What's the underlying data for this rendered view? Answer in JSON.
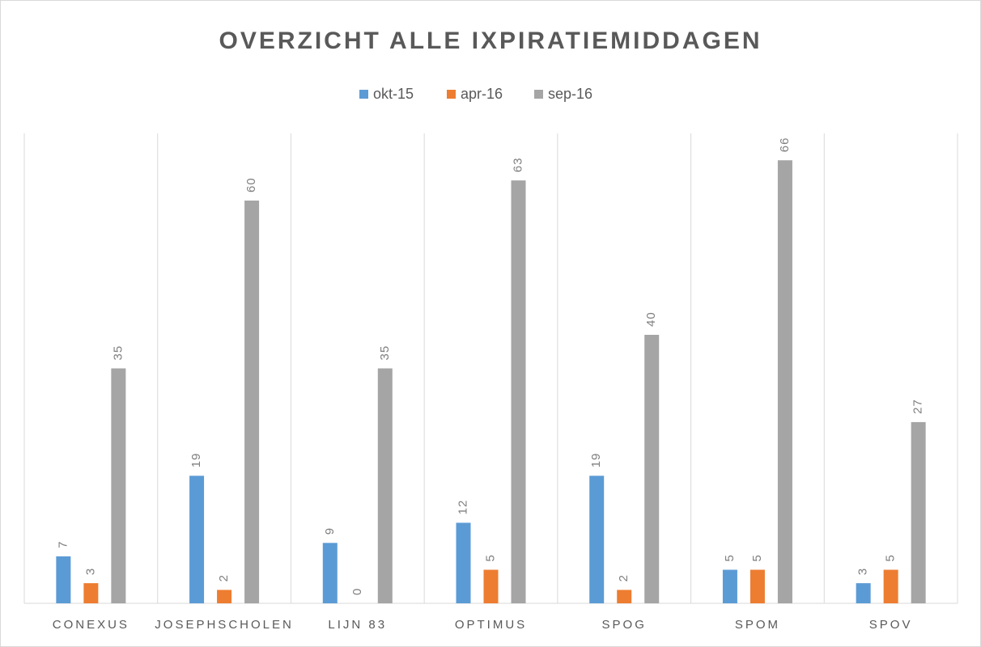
{
  "chart_data": {
    "type": "bar",
    "title": "OVERZICHT ALLE IXPIRATIEMIDDAGEN",
    "categories": [
      "CONEXUS",
      "JOSEPHSCHOLEN",
      "LIJN 83",
      "OPTIMUS",
      "SPOG",
      "SPOM",
      "SPOV"
    ],
    "series": [
      {
        "name": "okt-15",
        "color": "#5b9bd5",
        "values": [
          7,
          19,
          9,
          12,
          19,
          5,
          3
        ]
      },
      {
        "name": "apr-16",
        "color": "#ed7d31",
        "values": [
          3,
          2,
          0,
          5,
          2,
          5,
          5
        ]
      },
      {
        "name": "sep-16",
        "color": "#a5a5a5",
        "values": [
          35,
          60,
          35,
          63,
          40,
          66,
          27
        ]
      }
    ],
    "ylim": [
      0,
      70
    ],
    "legend": "top"
  }
}
